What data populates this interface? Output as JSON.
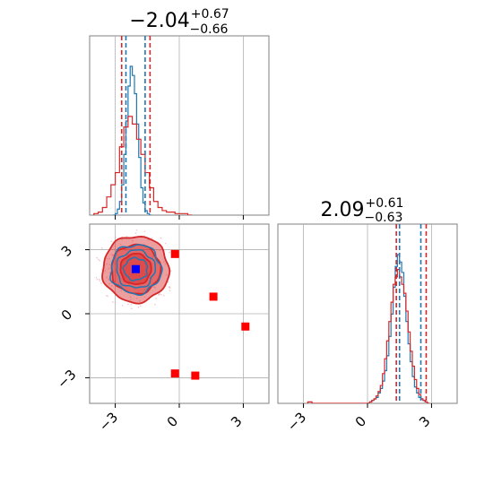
{
  "chart_data": [
    {
      "type": "histogram",
      "panel": "marginal-x",
      "title_main": "−2.04",
      "title_sup": "+0.67",
      "title_sub": "−0.66",
      "xlim": [
        -4.2,
        4.2
      ],
      "xticks": [
        -3,
        0,
        3
      ],
      "grid": true,
      "quantile_lines": [
        {
          "color": "#d62728",
          "x": [
            -2.7,
            -1.37
          ]
        },
        {
          "color": "#1f77b4",
          "x": [
            -2.5,
            -1.6
          ]
        }
      ],
      "series": [
        {
          "color": "#1f77b4",
          "bin_start": -3.1,
          "bin_width": 0.1,
          "counts": [
            0,
            1,
            4,
            9,
            20,
            40,
            62,
            85,
            98,
            92,
            80,
            60,
            38,
            18,
            8,
            3,
            1,
            0
          ]
        },
        {
          "color": "#d62728",
          "bin_start": -4.0,
          "bin_width": 0.2,
          "counts": [
            1,
            2,
            5,
            12,
            20,
            28,
            45,
            58,
            65,
            60,
            50,
            40,
            28,
            18,
            9,
            5,
            3,
            2,
            2,
            1,
            1,
            1,
            0
          ]
        }
      ]
    },
    {
      "type": "scatter-contour",
      "panel": "joint",
      "xlim": [
        -4.2,
        4.2
      ],
      "ylim": [
        -4.2,
        4.2
      ],
      "xticks": [
        -3,
        0,
        3
      ],
      "yticks": [
        -3,
        0,
        3
      ],
      "tick_labels": [
        "−3",
        "0",
        "3"
      ],
      "grid": true,
      "blue_marker": {
        "x": -2.04,
        "y": 2.09,
        "color": "#0000ff"
      },
      "red_markers": {
        "color": "#ff0000",
        "points": [
          [
            -0.2,
            2.8
          ],
          [
            1.6,
            0.8
          ],
          [
            3.1,
            -0.6
          ],
          [
            -0.2,
            -2.8
          ],
          [
            0.75,
            -2.9
          ]
        ]
      },
      "contours": [
        {
          "color": "#d62728",
          "level": 3,
          "rx": 1.55,
          "ry": 1.55
        },
        {
          "color": "#d62728",
          "level": 2,
          "rx": 1.15,
          "ry": 1.15
        },
        {
          "color": "#d62728",
          "level": 1,
          "rx": 0.72,
          "ry": 0.72
        },
        {
          "color": "#1f77b4",
          "level": 3,
          "rx": 1.18,
          "ry": 1.15
        },
        {
          "color": "#1f77b4",
          "level": 2,
          "rx": 0.9,
          "ry": 0.88
        },
        {
          "color": "#1f77b4",
          "level": 1,
          "rx": 0.55,
          "ry": 0.52
        }
      ],
      "center": [
        -2.04,
        2.09
      ]
    },
    {
      "type": "histogram",
      "panel": "marginal-y",
      "title_main": "2.09",
      "title_sup": "+0.61",
      "title_sub": "−0.63",
      "xlim": [
        -4.2,
        4.2
      ],
      "xticks": [
        -3,
        0,
        3
      ],
      "grid": true,
      "quantile_lines": [
        {
          "color": "#d62728",
          "x": [
            1.35,
            2.75
          ]
        },
        {
          "color": "#1f77b4",
          "x": [
            1.5,
            2.5
          ]
        }
      ],
      "series": [
        {
          "color": "#1f77b4",
          "bin_start": 0.0,
          "bin_width": 0.1,
          "counts": [
            0,
            1,
            2,
            3,
            4,
            7,
            10,
            15,
            22,
            32,
            45,
            60,
            78,
            92,
            100,
            95,
            88,
            72,
            55,
            40,
            28,
            18,
            11,
            7,
            4,
            3,
            2,
            1,
            0
          ]
        },
        {
          "color": "#d62728",
          "bin_start": -2.8,
          "bin_width": 0.1,
          "counts": [
            1,
            1,
            0,
            0,
            0,
            0,
            0,
            0,
            0,
            0,
            0,
            0,
            0,
            0,
            0,
            0,
            0,
            0,
            0,
            0,
            0,
            0,
            0,
            0,
            0,
            0,
            0,
            0,
            0,
            1,
            2,
            3,
            5,
            8,
            12,
            20,
            30,
            42,
            55,
            68,
            80,
            85,
            90,
            85,
            80,
            74,
            62,
            48,
            35,
            25,
            16,
            10,
            6,
            3,
            2,
            1,
            0
          ]
        }
      ]
    }
  ]
}
